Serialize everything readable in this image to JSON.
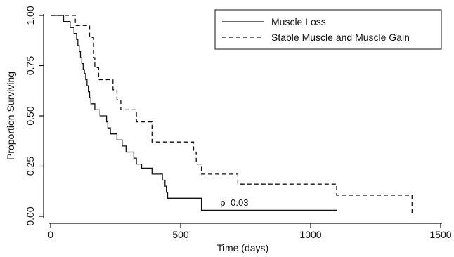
{
  "chart_data": {
    "type": "line",
    "title": "",
    "xlabel": "Time (days)",
    "ylabel": "Proportion Surviving",
    "xlim": [
      0,
      1500
    ],
    "ylim": [
      0,
      1
    ],
    "xticks": [
      0,
      500,
      1000,
      1500
    ],
    "xtick_labels": [
      "0",
      "500",
      "1000",
      "1500"
    ],
    "yticks": [
      0,
      0.25,
      0.5,
      0.75,
      1
    ],
    "ytick_labels": [
      "0.00",
      "0.25",
      "0.50",
      "0.75",
      "1.00"
    ],
    "grid": false,
    "legend_position": "top-right",
    "annotation": {
      "text": "p=0.03",
      "x": 690,
      "y": 0.045
    },
    "series": [
      {
        "name": "Muscle Loss",
        "style": "solid",
        "color": "#111111",
        "step_points": [
          [
            0,
            1.0
          ],
          [
            50,
            0.97
          ],
          [
            75,
            0.94
          ],
          [
            90,
            0.91
          ],
          [
            100,
            0.88
          ],
          [
            105,
            0.85
          ],
          [
            110,
            0.82
          ],
          [
            115,
            0.79
          ],
          [
            120,
            0.76
          ],
          [
            125,
            0.73
          ],
          [
            130,
            0.71
          ],
          [
            135,
            0.68
          ],
          [
            140,
            0.65
          ],
          [
            145,
            0.62
          ],
          [
            150,
            0.59
          ],
          [
            155,
            0.56
          ],
          [
            170,
            0.53
          ],
          [
            190,
            0.5
          ],
          [
            215,
            0.47
          ],
          [
            220,
            0.44
          ],
          [
            230,
            0.41
          ],
          [
            255,
            0.38
          ],
          [
            275,
            0.35
          ],
          [
            290,
            0.32
          ],
          [
            320,
            0.29
          ],
          [
            330,
            0.26
          ],
          [
            350,
            0.24
          ],
          [
            390,
            0.21
          ],
          [
            430,
            0.18
          ],
          [
            440,
            0.15
          ],
          [
            445,
            0.12
          ],
          [
            450,
            0.09
          ],
          [
            580,
            0.03
          ],
          [
            1100,
            0.03
          ]
        ]
      },
      {
        "name": "Stable Muscle and Muscle Gain",
        "style": "dashed",
        "color": "#111111",
        "step_points": [
          [
            0,
            1.0
          ],
          [
            95,
            0.95
          ],
          [
            150,
            0.89
          ],
          [
            165,
            0.79
          ],
          [
            170,
            0.74
          ],
          [
            185,
            0.68
          ],
          [
            240,
            0.63
          ],
          [
            255,
            0.58
          ],
          [
            270,
            0.53
          ],
          [
            330,
            0.47
          ],
          [
            390,
            0.37
          ],
          [
            550,
            0.32
          ],
          [
            560,
            0.26
          ],
          [
            580,
            0.21
          ],
          [
            720,
            0.16
          ],
          [
            1100,
            0.105
          ],
          [
            1390,
            0.0
          ]
        ]
      }
    ]
  }
}
